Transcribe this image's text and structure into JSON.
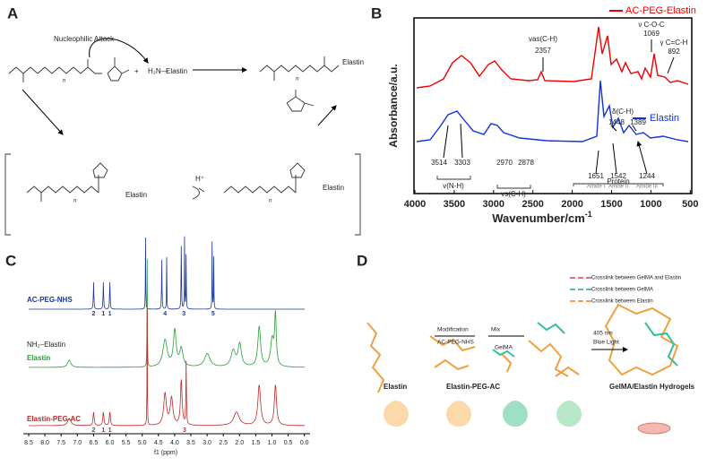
{
  "panels": {
    "a": "A",
    "b": "B",
    "c": "C",
    "d": "D"
  },
  "scheme": {
    "attack": "Nucleophilic Attack",
    "amine": "H₂N—",
    "plus": "+",
    "elastin": "Elastin",
    "h_plus": "H⁺",
    "n": "n"
  },
  "ftir": {
    "legend": [
      "AC-PEG-Elastin",
      "Elastin"
    ],
    "y_label": "Absorbance/a.u.",
    "x_label": "Wavenumber/cm",
    "x_unit": "-1",
    "xticks": [
      "4000",
      "3500",
      "3000",
      "2500",
      "2000",
      "1500",
      "1000",
      "500"
    ],
    "annotations": [
      "vas(C-H)",
      "2357",
      "ν C-O-C",
      "1069",
      "γ C=C-H",
      "892",
      "δ(C-H)",
      "1448",
      "1389",
      "3514",
      "3303",
      "2970",
      "2878",
      "1651",
      "1542",
      "1244",
      "Amide I",
      "Amide II",
      "Amide III",
      "v(N-H)",
      "vs(C-H)",
      "Protein"
    ]
  },
  "nmr": {
    "labels": [
      "AC-PEG-NHS",
      "NH₂–Elastin",
      "Elastin",
      "Elastin-PEG-AC"
    ],
    "peaks": [
      "2",
      "1",
      "1",
      "4",
      "3",
      "5",
      "2",
      "1",
      "1",
      "3"
    ],
    "xticks": [
      "8.5",
      "8.0",
      "7.5",
      "7.0",
      "6.5",
      "6.0",
      "5.5",
      "5.0",
      "4.5",
      "4.0",
      "3.5",
      "3.0",
      "2.5",
      "2.0",
      "1.5",
      "1.0",
      "0.5",
      "0.0"
    ],
    "x_label": "f1 (ppm)"
  },
  "process": {
    "legend": [
      "Crosslink between GelMA and Elastin",
      "Crosslink between GelMA",
      "Crosslink between Elastin"
    ],
    "steps": [
      "Modification",
      "AC-PEG-NHS",
      "Mix",
      "GelMA",
      "405 nm",
      "Blue Light"
    ],
    "captions": [
      "Elastin",
      "Elastin-PEG-AC",
      "GelMA/Elastin Hydrogels"
    ]
  }
}
